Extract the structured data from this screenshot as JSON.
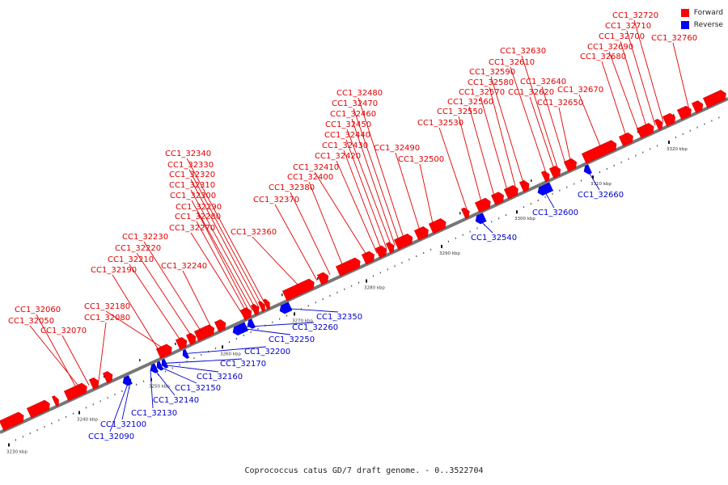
{
  "caption": "Coprococcus catus GD/7 draft genome. - 0..3522704",
  "legend": [
    {
      "label": "Forward",
      "color": "#ff0000"
    },
    {
      "label": "Reverse",
      "color": "#0000ff"
    }
  ],
  "colors": {
    "forward": "#ff0000",
    "reverse": "#0000ff",
    "label_forward": "#e00000",
    "label_reverse": "#0000cc"
  },
  "kb_labels": [
    "3230 kbp",
    "3240 kbp",
    "3250 kbp",
    "3260 kbp",
    "3270 kbp",
    "3280 kbp",
    "3290 kbp",
    "3300 kbp",
    "3310 kbp",
    "3320 kbp"
  ],
  "forward_labels": [
    "CC1_32060",
    "CC1_32050",
    "CC1_32070",
    "CC1_32080",
    "CC1_32180",
    "CC1_32190",
    "CC1_32210",
    "CC1_32220",
    "CC1_32230",
    "CC1_32240",
    "CC1_32270",
    "CC1_32280",
    "CC1_32290",
    "CC1_32300",
    "CC1_32310",
    "CC1_32320",
    "CC1_32330",
    "CC1_32340",
    "CC1_32360",
    "CC1_32370",
    "CC1_32380",
    "CC1_32400",
    "CC1_32410",
    "CC1_32420",
    "CC1_32430",
    "CC1_32440",
    "CC1_32450",
    "CC1_32460",
    "CC1_32470",
    "CC1_32480",
    "CC1_32490",
    "CC1_32500",
    "CC1_32530",
    "CC1_32550",
    "CC1_32560",
    "CC1_32570",
    "CC1_32580",
    "CC1_32590",
    "CC1_32610",
    "CC1_32620",
    "CC1_32630",
    "CC1_32640",
    "CC1_32650",
    "CC1_32670",
    "CC1_32680",
    "CC1_32690",
    "CC1_32700",
    "CC1_32710",
    "CC1_32720",
    "CC1_32760"
  ],
  "reverse_labels": [
    "CC1_32090",
    "CC1_32100",
    "CC1_32130",
    "CC1_32140",
    "CC1_32150",
    "CC1_32160",
    "CC1_32170",
    "CC1_32200",
    "CC1_32250",
    "CC1_32260",
    "CC1_32350",
    "CC1_32540",
    "CC1_32600",
    "CC1_32660"
  ]
}
